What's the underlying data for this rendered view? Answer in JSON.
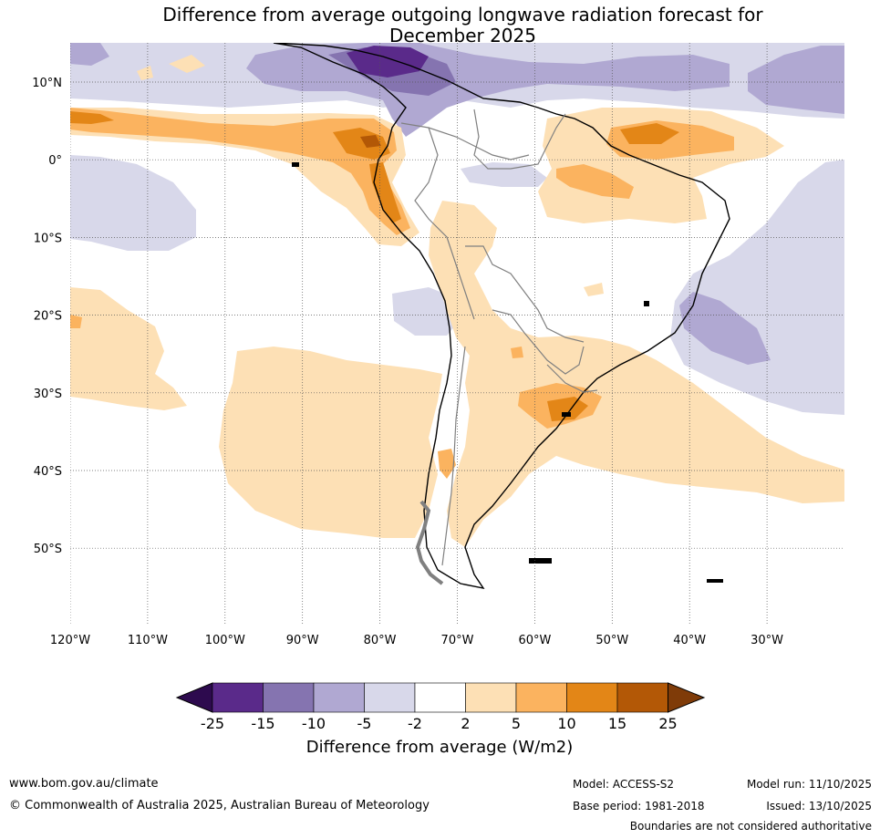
{
  "title_line1": "Difference from average outgoing longwave radiation forecast for",
  "title_line2": "December 2025",
  "lat_labels": [
    "10°N",
    "0°",
    "10°S",
    "20°S",
    "30°S",
    "40°S",
    "50°S"
  ],
  "lon_labels": [
    "120°W",
    "110°W",
    "100°W",
    "90°W",
    "80°W",
    "70°W",
    "60°W",
    "50°W",
    "40°W",
    "30°W"
  ],
  "colorbar": {
    "title": "Difference from average (W/m2)",
    "tick_labels": [
      "-25",
      "-15",
      "-10",
      "-5",
      "-2",
      "2",
      "5",
      "10",
      "15",
      "25"
    ],
    "colors": [
      "#2d0a4e",
      "#5a2a8a",
      "#8574b0",
      "#b0a8d2",
      "#d8d8ea",
      "#ffffff",
      "#fde0b5",
      "#fbb35f",
      "#e38617",
      "#b35806",
      "#7f3b08"
    ]
  },
  "footer": {
    "website": "www.bom.gov.au/climate",
    "copyright": "© Commonwealth of Australia 2025, Australian Bureau of Meteorology",
    "model": "Model: ACCESS-S2",
    "base_period": "Base period: 1981-2018",
    "model_run": "Model run: 11/10/2025",
    "issued": "Issued: 13/10/2025",
    "disclaimer": "Boundaries are not considered authoritative"
  }
}
